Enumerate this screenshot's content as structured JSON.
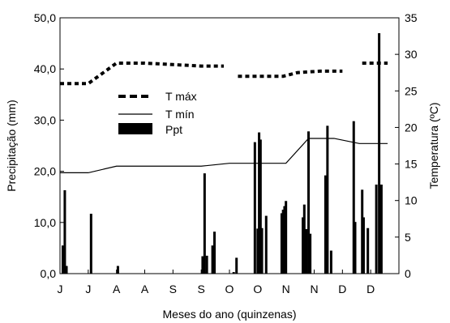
{
  "chart_data": {
    "type": "bar+line",
    "xlabel": "Meses do ano (quinzenas)",
    "ylabel_left": "Precipitação (mm)",
    "ylabel_right": "Temperatura (ºC)",
    "y_left_range": [
      0,
      50
    ],
    "y_right_range": [
      0,
      35
    ],
    "y_left_ticks": [
      "0,0",
      "10,0",
      "20,0",
      "30,0",
      "40,0",
      "50,0"
    ],
    "y_left_tick_values": [
      0,
      10,
      20,
      30,
      40,
      50
    ],
    "y_right_ticks": [
      "0",
      "5",
      "10",
      "15",
      "20",
      "25",
      "30",
      "35"
    ],
    "y_right_tick_values": [
      0,
      5,
      10,
      15,
      20,
      25,
      30,
      35
    ],
    "x_range": [
      0,
      24
    ],
    "x_tick_labels": [
      "J",
      "J",
      "A",
      "A",
      "S",
      "S",
      "O",
      "O",
      "N",
      "N",
      "D",
      "D"
    ],
    "legend": [
      {
        "label": "T máx",
        "style": "dashed-thick"
      },
      {
        "label": "T mín",
        "style": "solid-thin"
      },
      {
        "label": "Ppt",
        "style": "bar"
      }
    ],
    "grid": false,
    "legend_position": "upper-left-inside",
    "series": {
      "tmax": {
        "name": "T máx",
        "axis": "right",
        "segments": [
          [
            [
              0,
              26
            ],
            [
              1,
              26
            ],
            [
              2,
              28.8
            ],
            [
              3,
              28.8
            ],
            [
              4,
              28.6
            ],
            [
              5,
              28.4
            ],
            [
              5.8,
              28.4
            ]
          ],
          [
            [
              6.3,
              27
            ],
            [
              7.9,
              27
            ],
            [
              8.4,
              27.5
            ],
            [
              9.2,
              27.7
            ],
            [
              10,
              27.7
            ]
          ],
          [
            [
              10.7,
              28.8
            ],
            [
              11.6,
              28.8
            ]
          ]
        ]
      },
      "tmin": {
        "name": "T mín",
        "axis": "right",
        "points": [
          [
            0,
            13.8
          ],
          [
            1,
            13.8
          ],
          [
            2,
            14.7
          ],
          [
            3,
            14.7
          ],
          [
            4,
            14.7
          ],
          [
            5,
            14.7
          ],
          [
            6,
            15.1
          ],
          [
            7,
            15.1
          ],
          [
            8,
            15.1
          ],
          [
            8.8,
            18.5
          ],
          [
            9.7,
            18.5
          ],
          [
            10.6,
            17.8
          ],
          [
            11.6,
            17.8
          ]
        ]
      },
      "ppt": {
        "name": "Ppt",
        "axis": "left",
        "bars": [
          [
            0.1,
            5.5
          ],
          [
            0.17,
            16.3
          ],
          [
            0.23,
            1.5
          ],
          [
            1.1,
            11.7
          ],
          [
            2.05,
            1.5
          ],
          [
            5.05,
            3.4
          ],
          [
            5.12,
            19.6
          ],
          [
            5.2,
            3.5
          ],
          [
            5.4,
            5.5
          ],
          [
            5.47,
            8.2
          ],
          [
            6.15,
            0.3
          ],
          [
            6.25,
            3.1
          ],
          [
            6.9,
            25.7
          ],
          [
            7.0,
            8.8
          ],
          [
            7.05,
            27.6
          ],
          [
            7.1,
            26.2
          ],
          [
            7.15,
            8.9
          ],
          [
            7.3,
            11.3
          ],
          [
            7.85,
            11.8
          ],
          [
            7.9,
            12.5
          ],
          [
            7.95,
            13.2
          ],
          [
            8.0,
            14.2
          ],
          [
            8.6,
            11.0
          ],
          [
            8.65,
            13.5
          ],
          [
            8.72,
            8.7
          ],
          [
            8.8,
            27.8
          ],
          [
            8.86,
            7.8
          ],
          [
            9.4,
            19.2
          ],
          [
            9.47,
            28.9
          ],
          [
            9.6,
            4.5
          ],
          [
            10.4,
            29.8
          ],
          [
            10.45,
            10.1
          ],
          [
            10.7,
            16.4
          ],
          [
            10.75,
            11.0
          ],
          [
            10.9,
            8.9
          ],
          [
            11.2,
            17.4
          ],
          [
            11.3,
            47.0
          ],
          [
            11.38,
            17.4
          ]
        ]
      }
    }
  }
}
